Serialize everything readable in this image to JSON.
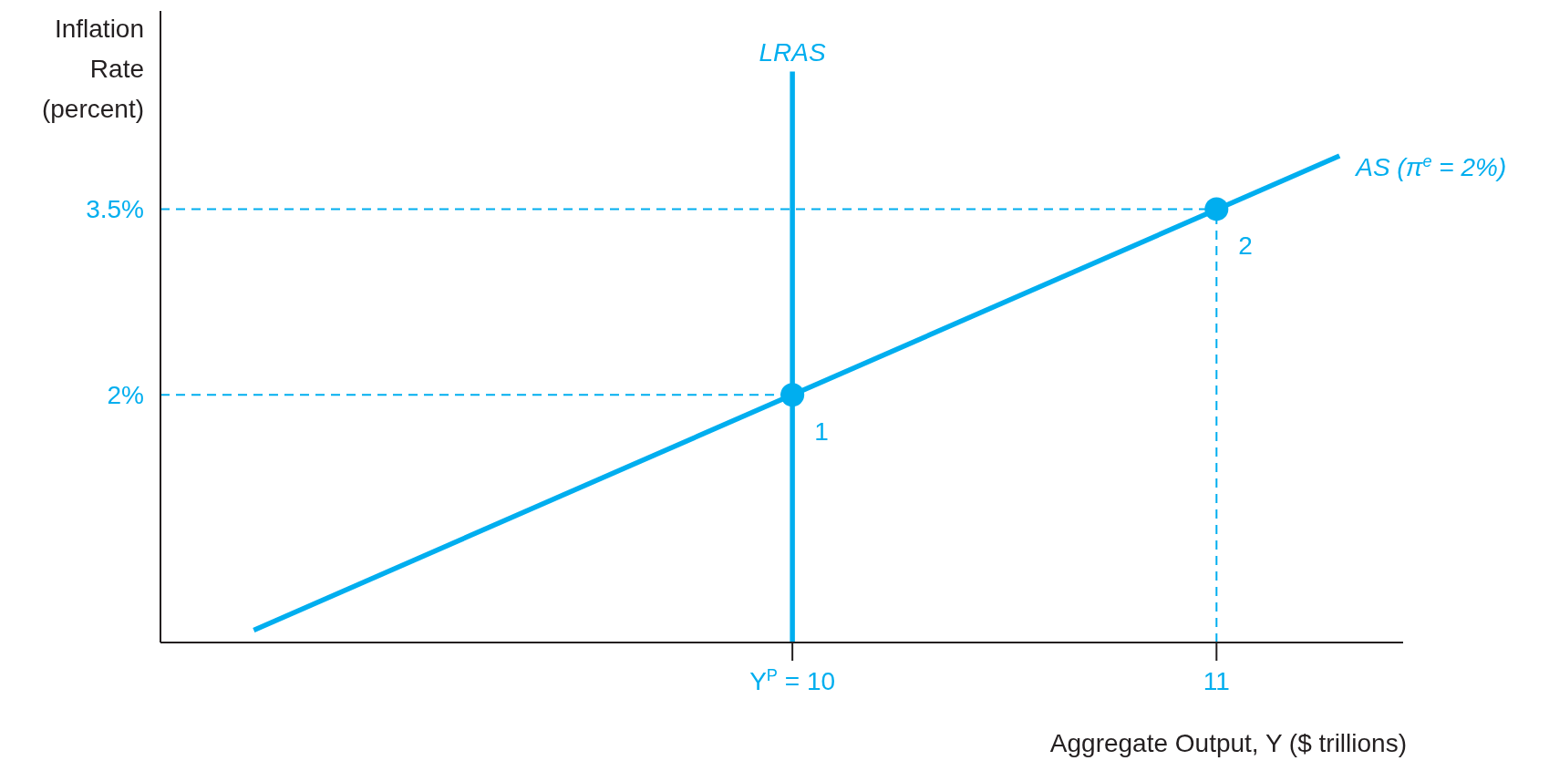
{
  "chart_data": {
    "type": "line",
    "xlabel": "Aggregate Output, Y ($ trillions)",
    "ylabel": "Inflation Rate (percent)",
    "xlim": [
      8.51,
      11.44
    ],
    "ylim": [
      0,
      5.1
    ],
    "xticks": [
      {
        "value": 10,
        "label": "Y$^{P}$ = 10"
      },
      11
    ],
    "yticks": [
      {
        "value": 2,
        "label": "2%"
      },
      {
        "value": 3.5,
        "label": "3.5%"
      }
    ],
    "series": [
      {
        "name": "LRAS",
        "color": "#00aeef",
        "x": [
          10,
          10
        ],
        "values": [
          0,
          4.61
        ]
      },
      {
        "name": "AS (π$^{e}$ = 2%)",
        "color": "#00aeef",
        "x": [
          8.73,
          11.29
        ],
        "values": [
          0.1,
          3.93
        ]
      },
      {
        "color": "#00aeef",
        "line_style": "dashed",
        "x": [
          8.51,
          10
        ],
        "values": [
          2,
          2
        ]
      },
      {
        "color": "#00aeef",
        "line_style": "dashed",
        "x": [
          8.51,
          11
        ],
        "values": [
          3.5,
          3.5
        ]
      },
      {
        "color": "#00aeef",
        "line_style": "dashed",
        "x": [
          11,
          11
        ],
        "values": [
          0,
          3.5
        ]
      },
      {
        "type": "scatter",
        "color": "#00aeef",
        "marker": "circle",
        "x": [
          10,
          11
        ],
        "values": [
          2,
          3.5
        ]
      }
    ],
    "annotations": [
      {
        "text": "1",
        "x": 10,
        "y": 2
      },
      {
        "text": "2",
        "x": 11,
        "y": 3.5
      }
    ]
  }
}
